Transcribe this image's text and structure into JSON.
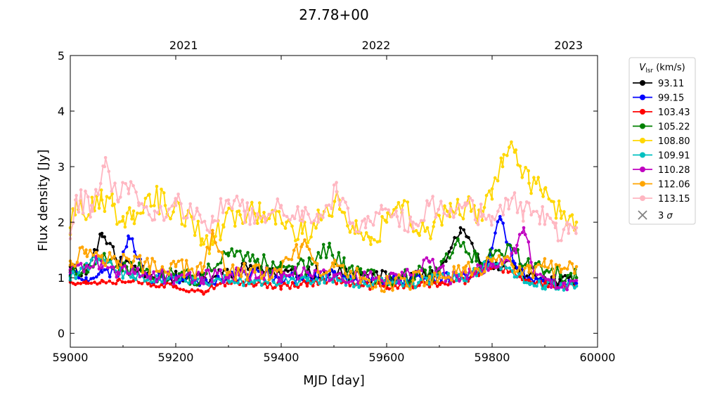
{
  "chart_data": {
    "type": "line",
    "title": "27.78+00",
    "xlabel": "MJD [day]",
    "ylabel": "Flux density [Jy]",
    "xlim": [
      59000,
      60000
    ],
    "ylim": [
      -0.25,
      5
    ],
    "x_ticks": [
      59000,
      59200,
      59400,
      59600,
      59800,
      60000
    ],
    "x_tick_labels": [
      "59000",
      "59200",
      "59400",
      "59600",
      "59800",
      "60000"
    ],
    "y_ticks": [
      0,
      1,
      2,
      3,
      4,
      5
    ],
    "y_tick_labels": [
      "0",
      "1",
      "2",
      "3",
      "4",
      "5"
    ],
    "top_axis": {
      "ticks": [
        59215,
        59580,
        59945
      ],
      "labels": [
        "2021",
        "2022",
        "2023"
      ]
    },
    "grid": false,
    "legend": {
      "placement": "outside-right",
      "title": "V_lsr (km/s)",
      "title_main": "V",
      "title_sub": "lsr",
      "title_rest": " (km/s)",
      "extra_entry": {
        "label_main": "3 ",
        "label_sigma": "σ",
        "marker": "x",
        "color": "#808080"
      }
    },
    "series": [
      {
        "name": "93.11",
        "color": "#000000",
        "key_points": [
          [
            59000,
            1.2
          ],
          [
            59030,
            1.1
          ],
          [
            59060,
            1.8
          ],
          [
            59090,
            1.3
          ],
          [
            59120,
            1.2
          ],
          [
            59150,
            1.1
          ],
          [
            59200,
            1.0
          ],
          [
            59250,
            0.95
          ],
          [
            59300,
            1.1
          ],
          [
            59350,
            1.2
          ],
          [
            59400,
            1.05
          ],
          [
            59450,
            1.1
          ],
          [
            59500,
            1.1
          ],
          [
            59550,
            1.05
          ],
          [
            59600,
            1.0
          ],
          [
            59650,
            1.0
          ],
          [
            59700,
            1.05
          ],
          [
            59740,
            1.9
          ],
          [
            59780,
            1.2
          ],
          [
            59810,
            1.2
          ],
          [
            59840,
            1.3
          ],
          [
            59870,
            1.0
          ],
          [
            59900,
            1.0
          ],
          [
            59930,
            0.9
          ],
          [
            59960,
            1.0
          ]
        ],
        "noise": 0.12,
        "seed": 11
      },
      {
        "name": "99.15",
        "color": "#0000ff",
        "key_points": [
          [
            59000,
            1.1
          ],
          [
            59030,
            1.0
          ],
          [
            59060,
            1.1
          ],
          [
            59090,
            1.1
          ],
          [
            59110,
            1.75
          ],
          [
            59150,
            1.0
          ],
          [
            59200,
            1.0
          ],
          [
            59250,
            0.95
          ],
          [
            59300,
            1.0
          ],
          [
            59350,
            1.1
          ],
          [
            59400,
            1.0
          ],
          [
            59450,
            1.0
          ],
          [
            59500,
            1.05
          ],
          [
            59550,
            1.0
          ],
          [
            59600,
            0.95
          ],
          [
            59650,
            0.95
          ],
          [
            59700,
            1.0
          ],
          [
            59750,
            1.05
          ],
          [
            59790,
            1.2
          ],
          [
            59815,
            2.1
          ],
          [
            59840,
            1.3
          ],
          [
            59870,
            1.0
          ],
          [
            59900,
            0.95
          ],
          [
            59930,
            0.9
          ],
          [
            59960,
            0.9
          ]
        ],
        "noise": 0.1,
        "seed": 23
      },
      {
        "name": "103.43",
        "color": "#ff0000",
        "key_points": [
          [
            59000,
            0.95
          ],
          [
            59030,
            0.9
          ],
          [
            59060,
            0.95
          ],
          [
            59090,
            0.95
          ],
          [
            59120,
            0.95
          ],
          [
            59150,
            0.9
          ],
          [
            59200,
            0.85
          ],
          [
            59250,
            0.75
          ],
          [
            59300,
            0.9
          ],
          [
            59350,
            0.9
          ],
          [
            59400,
            0.85
          ],
          [
            59450,
            0.9
          ],
          [
            59500,
            0.95
          ],
          [
            59550,
            0.85
          ],
          [
            59600,
            0.85
          ],
          [
            59650,
            0.85
          ],
          [
            59700,
            0.9
          ],
          [
            59750,
            0.95
          ],
          [
            59800,
            1.2
          ],
          [
            59840,
            1.1
          ],
          [
            59870,
            0.95
          ],
          [
            59900,
            0.9
          ],
          [
            59930,
            0.85
          ],
          [
            59960,
            0.85
          ]
        ],
        "noise": 0.06,
        "seed": 37
      },
      {
        "name": "105.22",
        "color": "#008000",
        "key_points": [
          [
            59000,
            1.1
          ],
          [
            59030,
            1.1
          ],
          [
            59060,
            1.3
          ],
          [
            59090,
            1.2
          ],
          [
            59120,
            1.15
          ],
          [
            59150,
            1.1
          ],
          [
            59200,
            1.0
          ],
          [
            59250,
            1.0
          ],
          [
            59300,
            1.4
          ],
          [
            59350,
            1.3
          ],
          [
            59400,
            1.2
          ],
          [
            59450,
            1.2
          ],
          [
            59490,
            1.55
          ],
          [
            59520,
            1.2
          ],
          [
            59550,
            1.1
          ],
          [
            59600,
            1.0
          ],
          [
            59650,
            1.05
          ],
          [
            59700,
            1.1
          ],
          [
            59735,
            1.7
          ],
          [
            59770,
            1.3
          ],
          [
            59800,
            1.4
          ],
          [
            59840,
            1.5
          ],
          [
            59870,
            1.2
          ],
          [
            59900,
            1.1
          ],
          [
            59930,
            1.05
          ],
          [
            59960,
            1.0
          ]
        ],
        "noise": 0.15,
        "seed": 51
      },
      {
        "name": "108.80",
        "color": "#ffd700",
        "key_points": [
          [
            59000,
            1.9
          ],
          [
            59010,
            2.4
          ],
          [
            59040,
            2.2
          ],
          [
            59060,
            2.4
          ],
          [
            59080,
            2.3
          ],
          [
            59100,
            2.1
          ],
          [
            59120,
            2.2
          ],
          [
            59150,
            2.5
          ],
          [
            59180,
            2.3
          ],
          [
            59220,
            2.1
          ],
          [
            59250,
            1.7
          ],
          [
            59270,
            1.6
          ],
          [
            59290,
            1.95
          ],
          [
            59320,
            2.2
          ],
          [
            59360,
            2.1
          ],
          [
            59390,
            2.2
          ],
          [
            59410,
            2.0
          ],
          [
            59440,
            1.8
          ],
          [
            59470,
            2.0
          ],
          [
            59510,
            2.4
          ],
          [
            59540,
            1.8
          ],
          [
            59570,
            1.6
          ],
          [
            59600,
            2.0
          ],
          [
            59630,
            2.3
          ],
          [
            59660,
            1.8
          ],
          [
            59690,
            2.0
          ],
          [
            59720,
            2.1
          ],
          [
            59750,
            2.3
          ],
          [
            59780,
            2.2
          ],
          [
            59800,
            2.6
          ],
          [
            59820,
            3.0
          ],
          [
            59845,
            3.3
          ],
          [
            59870,
            2.7
          ],
          [
            59900,
            2.6
          ],
          [
            59930,
            2.2
          ],
          [
            59960,
            2.0
          ]
        ],
        "noise": 0.25,
        "seed": 67
      },
      {
        "name": "109.91",
        "color": "#00c0c0",
        "key_points": [
          [
            59000,
            1.0
          ],
          [
            59030,
            1.2
          ],
          [
            59060,
            1.4
          ],
          [
            59090,
            1.1
          ],
          [
            59120,
            1.0
          ],
          [
            59150,
            1.0
          ],
          [
            59200,
            1.0
          ],
          [
            59250,
            0.95
          ],
          [
            59300,
            0.95
          ],
          [
            59350,
            0.95
          ],
          [
            59400,
            0.95
          ],
          [
            59450,
            0.95
          ],
          [
            59500,
            1.0
          ],
          [
            59550,
            0.9
          ],
          [
            59600,
            0.9
          ],
          [
            59650,
            0.9
          ],
          [
            59700,
            1.0
          ],
          [
            59750,
            1.0
          ],
          [
            59800,
            1.3
          ],
          [
            59840,
            1.1
          ],
          [
            59870,
            0.9
          ],
          [
            59900,
            0.85
          ],
          [
            59930,
            0.85
          ],
          [
            59960,
            0.85
          ]
        ],
        "noise": 0.09,
        "seed": 79
      },
      {
        "name": "110.28",
        "color": "#c000c0",
        "key_points": [
          [
            59000,
            1.15
          ],
          [
            59030,
            1.2
          ],
          [
            59060,
            1.3
          ],
          [
            59090,
            1.1
          ],
          [
            59120,
            1.1
          ],
          [
            59150,
            1.05
          ],
          [
            59200,
            1.0
          ],
          [
            59250,
            1.0
          ],
          [
            59300,
            1.05
          ],
          [
            59350,
            1.1
          ],
          [
            59400,
            1.05
          ],
          [
            59450,
            1.1
          ],
          [
            59500,
            1.05
          ],
          [
            59550,
            1.0
          ],
          [
            59600,
            1.0
          ],
          [
            59650,
            1.05
          ],
          [
            59680,
            1.3
          ],
          [
            59720,
            1.0
          ],
          [
            59760,
            1.1
          ],
          [
            59800,
            1.2
          ],
          [
            59845,
            1.45
          ],
          [
            59860,
            1.9
          ],
          [
            59880,
            1.1
          ],
          [
            59910,
            0.95
          ],
          [
            59935,
            0.9
          ],
          [
            59960,
            0.95
          ]
        ],
        "noise": 0.13,
        "seed": 89
      },
      {
        "name": "112.06",
        "color": "#ffa500",
        "key_points": [
          [
            59000,
            1.3
          ],
          [
            59030,
            1.5
          ],
          [
            59060,
            1.4
          ],
          [
            59090,
            1.3
          ],
          [
            59120,
            1.3
          ],
          [
            59150,
            1.2
          ],
          [
            59200,
            1.2
          ],
          [
            59250,
            1.1
          ],
          [
            59270,
            1.8
          ],
          [
            59300,
            1.1
          ],
          [
            59350,
            1.1
          ],
          [
            59400,
            1.1
          ],
          [
            59440,
            1.6
          ],
          [
            59470,
            1.1
          ],
          [
            59500,
            1.2
          ],
          [
            59550,
            1.0
          ],
          [
            59600,
            0.9
          ],
          [
            59650,
            0.95
          ],
          [
            59700,
            1.0
          ],
          [
            59750,
            1.1
          ],
          [
            59800,
            1.3
          ],
          [
            59840,
            1.2
          ],
          [
            59870,
            1.1
          ],
          [
            59900,
            1.2
          ],
          [
            59930,
            1.1
          ],
          [
            59960,
            1.2
          ]
        ],
        "noise": 0.16,
        "seed": 97
      },
      {
        "name": "113.15",
        "color": "#ffb6c1",
        "key_points": [
          [
            59000,
            1.8
          ],
          [
            59010,
            2.4
          ],
          [
            59040,
            2.3
          ],
          [
            59065,
            3.0
          ],
          [
            59090,
            2.4
          ],
          [
            59110,
            2.6
          ],
          [
            59130,
            2.3
          ],
          [
            59160,
            2.2
          ],
          [
            59200,
            2.3
          ],
          [
            59240,
            2.2
          ],
          [
            59270,
            2.0
          ],
          [
            59300,
            2.4
          ],
          [
            59330,
            2.2
          ],
          [
            59370,
            2.0
          ],
          [
            59400,
            2.3
          ],
          [
            59440,
            2.2
          ],
          [
            59470,
            2.0
          ],
          [
            59505,
            2.55
          ],
          [
            59530,
            2.0
          ],
          [
            59560,
            1.9
          ],
          [
            59590,
            2.3
          ],
          [
            59620,
            2.1
          ],
          [
            59650,
            2.0
          ],
          [
            59680,
            2.3
          ],
          [
            59720,
            2.2
          ],
          [
            59750,
            2.3
          ],
          [
            59780,
            2.1
          ],
          [
            59800,
            2.1
          ],
          [
            59830,
            2.4
          ],
          [
            59860,
            2.2
          ],
          [
            59890,
            2.1
          ],
          [
            59920,
            1.9
          ],
          [
            59945,
            1.8
          ],
          [
            59960,
            1.9
          ]
        ],
        "noise": 0.22,
        "seed": 113
      }
    ]
  }
}
